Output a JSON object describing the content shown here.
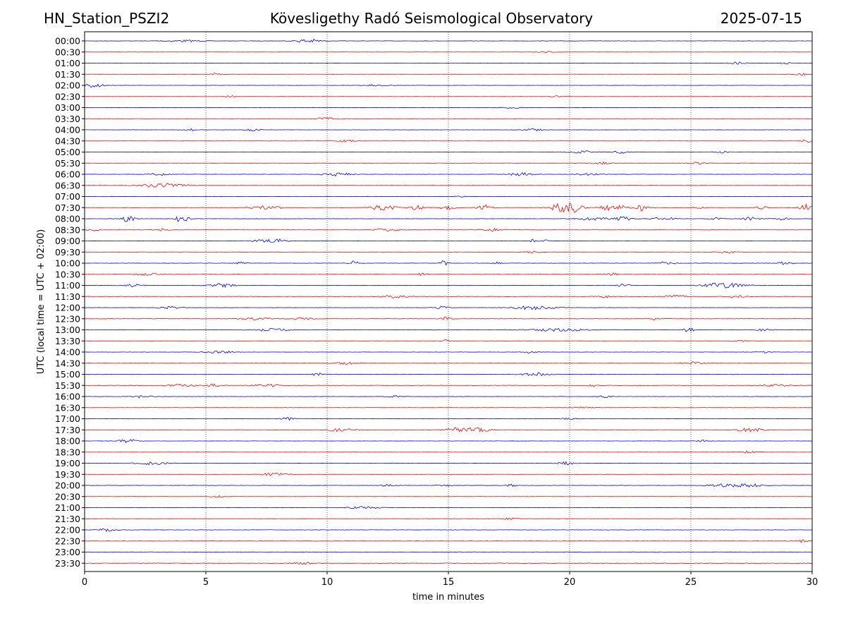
{
  "header": {
    "station": "HN_Station_PSZI2",
    "observatory": "Kövesligethy Radó Seismological Observatory",
    "date": "2025-07-15"
  },
  "chart_data": {
    "type": "line",
    "subtype": "seismic helicorder",
    "xlabel": "time in minutes",
    "ylabel": "UTC (local time = UTC + 02:00)",
    "xlim": [
      0,
      30
    ],
    "x_ticks": [
      "0",
      "5",
      "10",
      "15",
      "20",
      "25",
      "30"
    ],
    "x_grid": "dotted vertical lines every 5 minutes",
    "row_colors": [
      "#0000ff",
      "#ff0000"
    ],
    "rows": [
      {
        "label": "00:00",
        "amp": 0.22,
        "events": [
          {
            "t": 9.2,
            "a": 3.0,
            "w": 0.5
          },
          {
            "t": 4.0,
            "a": 1.5,
            "w": 0.8
          }
        ]
      },
      {
        "label": "00:30",
        "amp": 0.15,
        "events": [
          {
            "t": 19.0,
            "a": 1.5,
            "w": 0.3
          }
        ]
      },
      {
        "label": "01:00",
        "amp": 0.18,
        "events": [
          {
            "t": 27.0,
            "a": 1.8,
            "w": 0.4
          },
          {
            "t": 28.9,
            "a": 1.6,
            "w": 0.2
          }
        ]
      },
      {
        "label": "01:30",
        "amp": 0.15,
        "events": [
          {
            "t": 5.4,
            "a": 1.8,
            "w": 0.2
          },
          {
            "t": 29.5,
            "a": 1.8,
            "w": 0.3
          }
        ]
      },
      {
        "label": "02:00",
        "amp": 0.18,
        "events": [
          {
            "t": 0.3,
            "a": 2.5,
            "w": 0.5
          },
          {
            "t": 12.0,
            "a": 1.2,
            "w": 0.5
          }
        ]
      },
      {
        "label": "02:30",
        "amp": 0.15,
        "events": [
          {
            "t": 6.0,
            "a": 1.4,
            "w": 0.3
          },
          {
            "t": 19.5,
            "a": 1.3,
            "w": 0.3
          }
        ]
      },
      {
        "label": "03:00",
        "amp": 0.18,
        "events": [
          {
            "t": 17.5,
            "a": 1.3,
            "w": 0.5
          }
        ]
      },
      {
        "label": "03:30",
        "amp": 0.15,
        "events": [
          {
            "t": 10.0,
            "a": 2.0,
            "w": 0.5
          }
        ]
      },
      {
        "label": "04:00",
        "amp": 0.18,
        "events": [
          {
            "t": 4.3,
            "a": 2.2,
            "w": 0.2
          },
          {
            "t": 6.9,
            "a": 2.0,
            "w": 0.3
          },
          {
            "t": 18.5,
            "a": 2.0,
            "w": 0.4
          }
        ]
      },
      {
        "label": "04:30",
        "amp": 0.18,
        "events": [
          {
            "t": 10.8,
            "a": 2.0,
            "w": 0.3
          },
          {
            "t": 29.8,
            "a": 2.8,
            "w": 0.3
          }
        ]
      },
      {
        "label": "05:00",
        "amp": 0.22,
        "events": [
          {
            "t": 20.5,
            "a": 2.0,
            "w": 0.6
          },
          {
            "t": 22.1,
            "a": 2.0,
            "w": 0.3
          },
          {
            "t": 26.3,
            "a": 1.6,
            "w": 0.3
          }
        ]
      },
      {
        "label": "05:30",
        "amp": 0.18,
        "events": [
          {
            "t": 21.3,
            "a": 1.6,
            "w": 0.5
          },
          {
            "t": 25.3,
            "a": 1.8,
            "w": 0.4
          }
        ]
      },
      {
        "label": "06:00",
        "amp": 0.22,
        "events": [
          {
            "t": 3.0,
            "a": 2.0,
            "w": 0.5
          },
          {
            "t": 10.4,
            "a": 2.4,
            "w": 0.6
          },
          {
            "t": 18.0,
            "a": 2.2,
            "w": 0.5
          },
          {
            "t": 20.8,
            "a": 1.6,
            "w": 0.5
          }
        ]
      },
      {
        "label": "06:30",
        "amp": 0.2,
        "events": [
          {
            "t": 3.2,
            "a": 3.2,
            "w": 0.9
          }
        ]
      },
      {
        "label": "07:00",
        "amp": 0.15,
        "events": [
          {
            "t": 15.5,
            "a": 1.4,
            "w": 0.2
          }
        ]
      },
      {
        "label": "07:30",
        "amp": 0.2,
        "events": [
          {
            "t": 7.0,
            "a": 2.5,
            "w": 0.3
          },
          {
            "t": 7.5,
            "a": 2.4,
            "w": 0.3
          },
          {
            "t": 8.0,
            "a": 2.0,
            "w": 0.3
          },
          {
            "t": 12.3,
            "a": 4.5,
            "w": 0.5
          },
          {
            "t": 13.7,
            "a": 3.5,
            "w": 0.3
          },
          {
            "t": 15.0,
            "a": 4.0,
            "w": 0.3
          },
          {
            "t": 16.5,
            "a": 4.5,
            "w": 0.3
          },
          {
            "t": 19.8,
            "a": 9.0,
            "w": 0.5
          },
          {
            "t": 20.3,
            "a": 3.0,
            "w": 0.3
          },
          {
            "t": 21.5,
            "a": 4.0,
            "w": 0.3
          },
          {
            "t": 22.1,
            "a": 3.0,
            "w": 0.3
          },
          {
            "t": 22.9,
            "a": 5.0,
            "w": 0.3
          },
          {
            "t": 25.3,
            "a": 2.4,
            "w": 0.2
          },
          {
            "t": 27.9,
            "a": 3.0,
            "w": 0.2
          },
          {
            "t": 29.8,
            "a": 6.0,
            "w": 0.3
          }
        ]
      },
      {
        "label": "08:00",
        "amp": 0.2,
        "events": [
          {
            "t": 1.8,
            "a": 5.0,
            "w": 0.3
          },
          {
            "t": 4.0,
            "a": 5.0,
            "w": 0.3
          },
          {
            "t": 20.9,
            "a": 3.0,
            "w": 0.6
          },
          {
            "t": 22.2,
            "a": 3.0,
            "w": 0.4
          },
          {
            "t": 23.9,
            "a": 3.0,
            "w": 0.4
          },
          {
            "t": 26.0,
            "a": 2.0,
            "w": 0.3
          },
          {
            "t": 27.5,
            "a": 2.5,
            "w": 0.4
          },
          {
            "t": 28.8,
            "a": 2.0,
            "w": 0.3
          }
        ]
      },
      {
        "label": "08:30",
        "amp": 0.2,
        "events": [
          {
            "t": 0.3,
            "a": 2.0,
            "w": 0.3
          },
          {
            "t": 3.2,
            "a": 2.0,
            "w": 0.3
          },
          {
            "t": 12.5,
            "a": 2.0,
            "w": 0.6
          },
          {
            "t": 16.8,
            "a": 2.0,
            "w": 0.4
          }
        ]
      },
      {
        "label": "09:00",
        "amp": 0.18,
        "events": [
          {
            "t": 7.5,
            "a": 2.2,
            "w": 0.6
          },
          {
            "t": 8.0,
            "a": 2.4,
            "w": 0.3
          },
          {
            "t": 18.5,
            "a": 3.5,
            "w": 0.1
          },
          {
            "t": 19.0,
            "a": 1.6,
            "w": 0.2
          }
        ]
      },
      {
        "label": "09:30",
        "amp": 0.15,
        "events": [
          {
            "t": 18.5,
            "a": 1.8,
            "w": 0.3
          },
          {
            "t": 26.5,
            "a": 1.5,
            "w": 0.4
          }
        ]
      },
      {
        "label": "10:00",
        "amp": 0.25,
        "events": [
          {
            "t": 6.4,
            "a": 2.4,
            "w": 0.2
          },
          {
            "t": 11.1,
            "a": 3.5,
            "w": 0.2
          },
          {
            "t": 14.8,
            "a": 3.5,
            "w": 0.2
          },
          {
            "t": 17.0,
            "a": 1.6,
            "w": 0.2
          },
          {
            "t": 24.0,
            "a": 2.0,
            "w": 0.4
          },
          {
            "t": 28.8,
            "a": 1.8,
            "w": 0.4
          }
        ]
      },
      {
        "label": "10:30",
        "amp": 0.22,
        "events": [
          {
            "t": 2.5,
            "a": 1.8,
            "w": 0.5
          },
          {
            "t": 13.9,
            "a": 1.8,
            "w": 0.2
          },
          {
            "t": 21.8,
            "a": 1.8,
            "w": 0.3
          }
        ]
      },
      {
        "label": "11:00",
        "amp": 0.22,
        "events": [
          {
            "t": 2.0,
            "a": 1.8,
            "w": 0.4
          },
          {
            "t": 5.7,
            "a": 3.0,
            "w": 0.5
          },
          {
            "t": 22.2,
            "a": 2.0,
            "w": 0.3
          },
          {
            "t": 26.3,
            "a": 4.0,
            "w": 0.8
          }
        ]
      },
      {
        "label": "11:30",
        "amp": 0.2,
        "events": [
          {
            "t": 12.8,
            "a": 2.0,
            "w": 0.6
          },
          {
            "t": 21.5,
            "a": 1.8,
            "w": 0.4
          },
          {
            "t": 24.3,
            "a": 2.2,
            "w": 0.5
          },
          {
            "t": 26.8,
            "a": 1.8,
            "w": 0.4
          }
        ]
      },
      {
        "label": "12:00",
        "amp": 0.18,
        "events": [
          {
            "t": 3.5,
            "a": 1.8,
            "w": 0.5
          },
          {
            "t": 14.7,
            "a": 2.0,
            "w": 0.3
          },
          {
            "t": 18.5,
            "a": 3.0,
            "w": 0.9
          }
        ]
      },
      {
        "label": "12:30",
        "amp": 0.22,
        "events": [
          {
            "t": 7.0,
            "a": 2.0,
            "w": 0.6
          },
          {
            "t": 9.0,
            "a": 1.8,
            "w": 0.5
          },
          {
            "t": 14.9,
            "a": 3.0,
            "w": 0.2
          },
          {
            "t": 23.5,
            "a": 2.2,
            "w": 0.3
          }
        ]
      },
      {
        "label": "13:00",
        "amp": 0.22,
        "events": [
          {
            "t": 7.6,
            "a": 2.2,
            "w": 0.8
          },
          {
            "t": 19.5,
            "a": 2.0,
            "w": 1.2
          },
          {
            "t": 24.9,
            "a": 4.0,
            "w": 0.2
          },
          {
            "t": 28.0,
            "a": 1.6,
            "w": 0.4
          }
        ]
      },
      {
        "label": "13:30",
        "amp": 0.15,
        "events": [
          {
            "t": 14.9,
            "a": 1.8,
            "w": 0.2
          },
          {
            "t": 27.0,
            "a": 1.4,
            "w": 0.3
          }
        ]
      },
      {
        "label": "14:00",
        "amp": 0.18,
        "events": [
          {
            "t": 5.6,
            "a": 2.4,
            "w": 0.5
          },
          {
            "t": 18.4,
            "a": 1.6,
            "w": 0.3
          },
          {
            "t": 28.0,
            "a": 1.8,
            "w": 0.3
          }
        ]
      },
      {
        "label": "14:30",
        "amp": 0.18,
        "events": [
          {
            "t": 10.8,
            "a": 2.0,
            "w": 0.5
          },
          {
            "t": 25.1,
            "a": 2.0,
            "w": 0.4
          }
        ]
      },
      {
        "label": "15:00",
        "amp": 0.22,
        "events": [
          {
            "t": 9.6,
            "a": 2.5,
            "w": 0.2
          },
          {
            "t": 18.6,
            "a": 2.4,
            "w": 0.6
          }
        ]
      },
      {
        "label": "15:30",
        "amp": 0.28,
        "events": [
          {
            "t": 4.0,
            "a": 2.0,
            "w": 0.6
          },
          {
            "t": 5.3,
            "a": 2.2,
            "w": 0.3
          },
          {
            "t": 7.5,
            "a": 2.0,
            "w": 0.5
          },
          {
            "t": 21.0,
            "a": 1.8,
            "w": 0.2
          },
          {
            "t": 28.5,
            "a": 2.0,
            "w": 0.5
          }
        ]
      },
      {
        "label": "16:00",
        "amp": 0.22,
        "events": [
          {
            "t": 2.4,
            "a": 2.0,
            "w": 0.4
          },
          {
            "t": 12.8,
            "a": 1.6,
            "w": 0.3
          },
          {
            "t": 21.5,
            "a": 1.6,
            "w": 0.3
          }
        ]
      },
      {
        "label": "16:30",
        "amp": 0.15,
        "events": [
          {
            "t": 20.5,
            "a": 1.2,
            "w": 0.5
          }
        ]
      },
      {
        "label": "17:00",
        "amp": 0.18,
        "events": [
          {
            "t": 8.4,
            "a": 2.2,
            "w": 0.3
          },
          {
            "t": 20.0,
            "a": 1.4,
            "w": 0.3
          }
        ]
      },
      {
        "label": "17:30",
        "amp": 0.18,
        "events": [
          {
            "t": 10.5,
            "a": 2.2,
            "w": 0.6
          },
          {
            "t": 15.5,
            "a": 3.5,
            "w": 0.6
          },
          {
            "t": 16.3,
            "a": 2.4,
            "w": 0.5
          },
          {
            "t": 27.5,
            "a": 3.0,
            "w": 0.6
          }
        ]
      },
      {
        "label": "18:00",
        "amp": 0.18,
        "events": [
          {
            "t": 1.8,
            "a": 2.6,
            "w": 0.4
          },
          {
            "t": 25.5,
            "a": 1.6,
            "w": 0.3
          }
        ]
      },
      {
        "label": "18:30",
        "amp": 0.15,
        "events": [
          {
            "t": 27.3,
            "a": 1.8,
            "w": 0.4
          }
        ]
      },
      {
        "label": "19:00",
        "amp": 0.22,
        "events": [
          {
            "t": 2.8,
            "a": 2.4,
            "w": 0.6
          },
          {
            "t": 19.9,
            "a": 2.4,
            "w": 0.4
          }
        ]
      },
      {
        "label": "19:30",
        "amp": 0.15,
        "events": [
          {
            "t": 7.8,
            "a": 2.2,
            "w": 0.5
          }
        ]
      },
      {
        "label": "20:00",
        "amp": 0.22,
        "events": [
          {
            "t": 12.5,
            "a": 1.8,
            "w": 0.3
          },
          {
            "t": 14.8,
            "a": 1.6,
            "w": 0.3
          },
          {
            "t": 17.6,
            "a": 2.0,
            "w": 0.2
          },
          {
            "t": 26.4,
            "a": 2.2,
            "w": 0.7
          },
          {
            "t": 27.5,
            "a": 2.2,
            "w": 0.6
          }
        ]
      },
      {
        "label": "20:30",
        "amp": 0.15,
        "events": [
          {
            "t": 5.5,
            "a": 1.2,
            "w": 0.3
          }
        ]
      },
      {
        "label": "21:00",
        "amp": 0.2,
        "events": [
          {
            "t": 11.5,
            "a": 1.8,
            "w": 0.7
          }
        ]
      },
      {
        "label": "21:30",
        "amp": 0.15,
        "events": [
          {
            "t": 17.5,
            "a": 1.2,
            "w": 0.5
          }
        ]
      },
      {
        "label": "22:00",
        "amp": 0.28,
        "events": [
          {
            "t": 0.9,
            "a": 2.0,
            "w": 0.4
          }
        ]
      },
      {
        "label": "22:30",
        "amp": 0.3,
        "events": [
          {
            "t": 29.5,
            "a": 2.0,
            "w": 0.3
          }
        ]
      },
      {
        "label": "23:00",
        "amp": 0.32,
        "events": []
      },
      {
        "label": "23:30",
        "amp": 0.35,
        "events": [
          {
            "t": 9.0,
            "a": 1.8,
            "w": 0.4
          }
        ]
      }
    ]
  }
}
